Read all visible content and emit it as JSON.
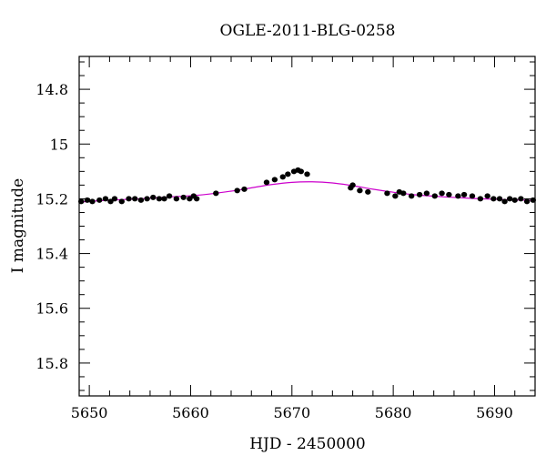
{
  "chart_data": {
    "type": "scatter",
    "title": "OGLE-2011-BLG-0258",
    "xlabel": "HJD - 2450000",
    "ylabel": "I magnitude",
    "xlim": [
      5649,
      5694
    ],
    "ylim": [
      15.92,
      14.68
    ],
    "y_inverted": true,
    "x_ticks": [
      5650,
      5660,
      5670,
      5680,
      5690
    ],
    "y_ticks": [
      14.8,
      15,
      15.2,
      15.4,
      15.6,
      15.8
    ],
    "y_tick_labels": [
      "14.8",
      "15",
      "15.2",
      "15.4",
      "15.6",
      "15.8"
    ],
    "grid": false,
    "colors": {
      "points": "#000000",
      "model": "#cc00cc"
    },
    "series": [
      {
        "kind": "points",
        "x": [
          5649.2,
          5649.8,
          5650.3,
          5651.0,
          5651.6,
          5652.1,
          5652.5,
          5653.2,
          5653.9,
          5654.5,
          5655.1,
          5655.7,
          5656.3,
          5656.9,
          5657.4,
          5657.9,
          5658.6,
          5659.3,
          5659.9,
          5660.3,
          5660.6,
          5662.5,
          5664.6,
          5665.3,
          5667.5,
          5668.3,
          5669.1,
          5669.6,
          5670.2,
          5670.6,
          5670.9,
          5671.5,
          5675.8,
          5676.0,
          5676.7,
          5677.5,
          5679.4,
          5680.2,
          5680.6,
          5681.0,
          5681.8,
          5682.6,
          5683.3,
          5684.1,
          5684.8,
          5685.5,
          5686.4,
          5687.0,
          5687.8,
          5688.6,
          5689.3,
          5689.9,
          5690.5,
          5691.0,
          5691.5,
          5692.0,
          5692.6,
          5693.2,
          5693.8
        ],
        "y": [
          15.21,
          15.205,
          15.21,
          15.205,
          15.2,
          15.21,
          15.2,
          15.21,
          15.2,
          15.2,
          15.205,
          15.2,
          15.195,
          15.2,
          15.2,
          15.19,
          15.2,
          15.195,
          15.2,
          15.19,
          15.2,
          15.18,
          15.17,
          15.165,
          15.14,
          15.13,
          15.12,
          15.11,
          15.1,
          15.095,
          15.1,
          15.11,
          15.16,
          15.15,
          15.17,
          15.175,
          15.18,
          15.19,
          15.175,
          15.18,
          15.19,
          15.185,
          15.18,
          15.19,
          15.18,
          15.185,
          15.19,
          15.185,
          15.19,
          15.2,
          15.19,
          15.2,
          15.2,
          15.21,
          15.2,
          15.205,
          15.2,
          15.21,
          15.205
        ]
      },
      {
        "kind": "model",
        "x": [
          5649,
          5652,
          5655,
          5658,
          5661,
          5664,
          5666,
          5668,
          5670,
          5672,
          5674,
          5676,
          5678,
          5680,
          5682,
          5685,
          5688,
          5691,
          5694
        ],
        "y": [
          15.212,
          15.205,
          15.2,
          15.193,
          15.186,
          15.172,
          15.16,
          15.148,
          15.14,
          15.138,
          15.142,
          15.152,
          15.165,
          15.176,
          15.185,
          15.193,
          15.199,
          15.203,
          15.206
        ]
      }
    ]
  }
}
